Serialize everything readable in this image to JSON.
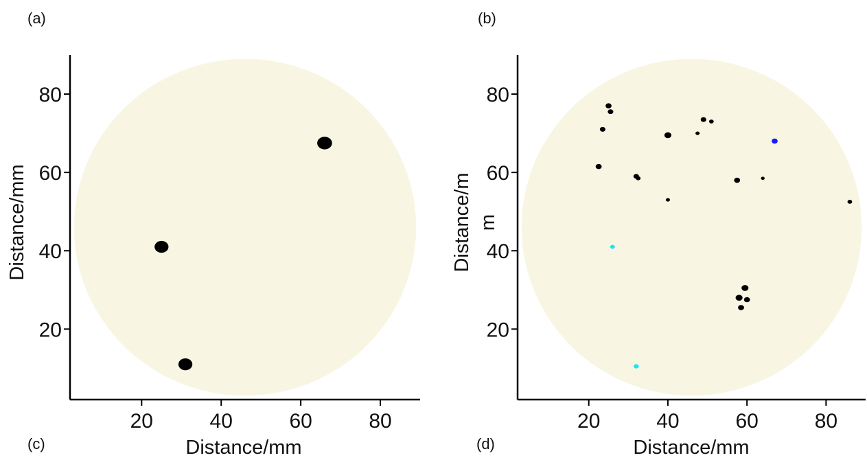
{
  "panel_labels": {
    "a": "(a)",
    "b": "(b)",
    "c": "(c)",
    "d": "(d)"
  },
  "colors": {
    "disk": "#f8f6e3",
    "spot": "#000000",
    "spot_blue": "#1a1aff",
    "spot_cyan": "#19e6f0",
    "axis": "#000000"
  },
  "chart_data": [
    {
      "type": "scatter",
      "xlabel": "Distance/mm",
      "ylabel": "Distance/mm",
      "xlim": [
        2,
        90
      ],
      "ylim": [
        2,
        90
      ],
      "xticks": [
        20,
        40,
        60,
        80
      ],
      "yticks": [
        20,
        40,
        60,
        80
      ],
      "background_disk": {
        "cx": 46,
        "cy": 46,
        "r": 43
      },
      "points": [
        {
          "x": 66,
          "y": 67.5,
          "size": 3.2,
          "color": "black"
        },
        {
          "x": 25,
          "y": 41,
          "size": 3.0,
          "color": "black"
        },
        {
          "x": 31,
          "y": 11,
          "size": 3.0,
          "color": "black"
        }
      ]
    },
    {
      "type": "scatter",
      "xlabel": "Distance/mm",
      "ylabel_lines": [
        "Distance/m",
        "m"
      ],
      "xlim": [
        2,
        90
      ],
      "ylim": [
        2,
        90
      ],
      "xticks": [
        20,
        40,
        60,
        80
      ],
      "yticks": [
        20,
        40,
        60,
        80
      ],
      "background_disk": {
        "cx": 46,
        "cy": 46,
        "r": 43
      },
      "points": [
        {
          "x": 25,
          "y": 77,
          "size": 1.3,
          "color": "black"
        },
        {
          "x": 25.5,
          "y": 75.5,
          "size": 1.2,
          "color": "black"
        },
        {
          "x": 23.5,
          "y": 71,
          "size": 1.2,
          "color": "black"
        },
        {
          "x": 22.5,
          "y": 61.5,
          "size": 1.3,
          "color": "black"
        },
        {
          "x": 40,
          "y": 69.5,
          "size": 1.5,
          "color": "black"
        },
        {
          "x": 47.5,
          "y": 70,
          "size": 0.9,
          "color": "black"
        },
        {
          "x": 49,
          "y": 73.5,
          "size": 1.2,
          "color": "black"
        },
        {
          "x": 51,
          "y": 73,
          "size": 1.0,
          "color": "black"
        },
        {
          "x": 32,
          "y": 59,
          "size": 1.2,
          "color": "black"
        },
        {
          "x": 32.5,
          "y": 58.5,
          "size": 1.0,
          "color": "black"
        },
        {
          "x": 40,
          "y": 53,
          "size": 0.9,
          "color": "black"
        },
        {
          "x": 57.5,
          "y": 58,
          "size": 1.3,
          "color": "black"
        },
        {
          "x": 64,
          "y": 58.5,
          "size": 0.8,
          "color": "black"
        },
        {
          "x": 86,
          "y": 52.5,
          "size": 1.0,
          "color": "black"
        },
        {
          "x": 59.5,
          "y": 30.5,
          "size": 1.5,
          "color": "black"
        },
        {
          "x": 58,
          "y": 28,
          "size": 1.5,
          "color": "black"
        },
        {
          "x": 60,
          "y": 27.5,
          "size": 1.3,
          "color": "black"
        },
        {
          "x": 58.5,
          "y": 25.5,
          "size": 1.3,
          "color": "black"
        },
        {
          "x": 67,
          "y": 68,
          "size": 1.3,
          "color": "blue"
        },
        {
          "x": 26,
          "y": 41,
          "size": 1.0,
          "color": "cyan"
        },
        {
          "x": 32,
          "y": 10.5,
          "size": 1.1,
          "color": "cyan"
        }
      ]
    }
  ]
}
